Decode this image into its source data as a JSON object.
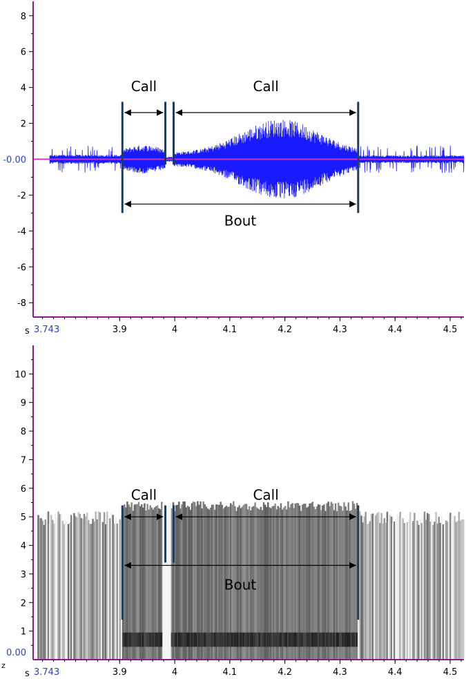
{
  "chart_data": [
    {
      "type": "line",
      "title": "",
      "xlabel": "",
      "ylabel": "",
      "x_unit": "s",
      "x_start_label": "3.743",
      "y_zero_label": "-0.00",
      "xlim": [
        3.743,
        4.525
      ],
      "ylim": [
        -8.8,
        8.8
      ],
      "x_ticks": [
        3.9,
        4,
        4.1,
        4.2,
        4.3,
        4.4,
        4.5
      ],
      "x_tick_labels": [
        "3.9",
        "4",
        "4.1",
        "4.2",
        "4.3",
        "4.4",
        "4.5"
      ],
      "y_ticks": [
        8,
        6,
        4,
        2,
        -2,
        -4,
        -6,
        -8
      ],
      "y_tick_labels": [
        "8",
        "6",
        "4",
        "2",
        "-2",
        "-4",
        "-6",
        "-8"
      ],
      "waveform_color": "#1a1aff",
      "zero_line_color": "#cc33cc",
      "axis_color": "#8b1a8b",
      "segment_color": "#1f3b5c",
      "segments": [
        {
          "label": "Call",
          "start": 3.905,
          "end": 3.983
        },
        {
          "label": "Call",
          "start": 3.998,
          "end": 4.333
        }
      ],
      "bout": {
        "label": "Bout",
        "start": 3.905,
        "end": 4.333
      }
    },
    {
      "type": "heatmap",
      "title": "",
      "xlabel": "",
      "ylabel": "",
      "x_unit": "s",
      "x_start_label": "3.743",
      "y_zero_label": "0.00",
      "y_unit_glyph": "z",
      "xlim": [
        3.743,
        4.525
      ],
      "ylim": [
        0,
        11
      ],
      "x_ticks": [
        3.9,
        4,
        4.1,
        4.2,
        4.3,
        4.4,
        4.5
      ],
      "x_tick_labels": [
        "3.9",
        "4",
        "4.1",
        "4.2",
        "4.3",
        "4.4",
        "4.5"
      ],
      "y_ticks": [
        1,
        2,
        3,
        4,
        5,
        6,
        7,
        8,
        9,
        10
      ],
      "y_tick_labels": [
        "1",
        "2",
        "3",
        "4",
        "5",
        "6",
        "7",
        "8",
        "9",
        "10"
      ],
      "colormap": "grayscale",
      "segments": [
        {
          "label": "Call",
          "start": 3.905,
          "end": 3.983
        },
        {
          "label": "Call",
          "start": 3.998,
          "end": 4.333
        }
      ],
      "bout": {
        "label": "Bout",
        "start": 3.905,
        "end": 4.333
      }
    }
  ]
}
